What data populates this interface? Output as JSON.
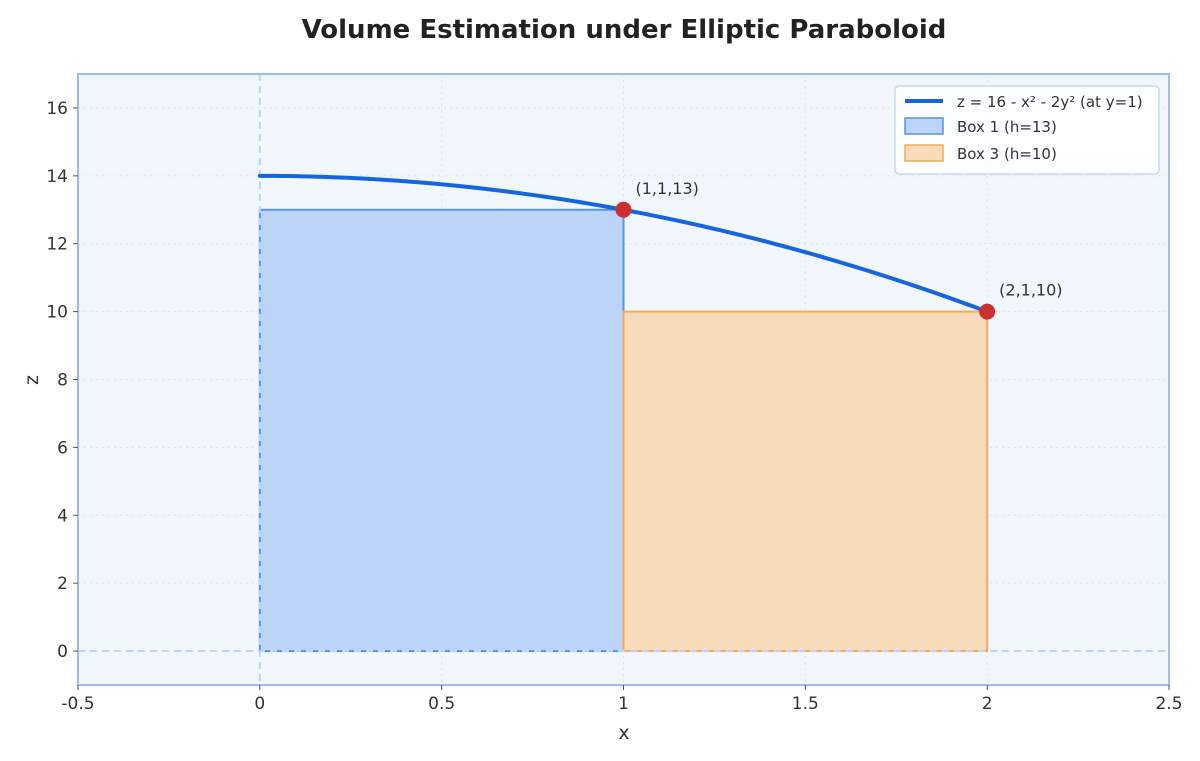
{
  "chart_data": {
    "type": "line",
    "title": "Volume Estimation under Elliptic Paraboloid",
    "xlabel": "x",
    "ylabel": "z",
    "xlim": [
      -0.5,
      2.5
    ],
    "ylim": [
      -1,
      17
    ],
    "x_ticks": [
      -0.5,
      0,
      0.5,
      1,
      1.5,
      2,
      2.5
    ],
    "x_tick_labels": [
      "-0.5",
      "0",
      "0.5",
      "1",
      "1.5",
      "2",
      "2.5"
    ],
    "y_ticks": [
      0,
      2,
      4,
      6,
      8,
      10,
      12,
      14,
      16
    ],
    "y_tick_labels": [
      "0",
      "2",
      "4",
      "6",
      "8",
      "10",
      "12",
      "14",
      "16"
    ],
    "grid": true,
    "legend_position": "top-right",
    "curve": {
      "name": "z = 16 - x² - 2y² (at y=1)",
      "x_range": [
        0,
        2
      ],
      "color": "#1565e0"
    },
    "boxes": [
      {
        "name": "Box 1 (h=13)",
        "x0": 0,
        "x1": 1,
        "height": 13,
        "fill": "#bcd4f7",
        "stroke": "#5b93e6"
      },
      {
        "name": "Box 3 (h=10)",
        "x0": 1,
        "x1": 2,
        "height": 10,
        "fill": "#f8dbb8",
        "stroke": "#f2a95a"
      }
    ],
    "points": [
      {
        "x": 1,
        "z": 13,
        "label": "(1,1,13)"
      },
      {
        "x": 2,
        "z": 10,
        "label": "(2,1,10)"
      }
    ],
    "reference_lines": {
      "x": 0,
      "z": 0
    },
    "point_color": "#cc2f2f",
    "plot_background": "#f1f7fd",
    "frame_color": "#9dbdf0"
  }
}
